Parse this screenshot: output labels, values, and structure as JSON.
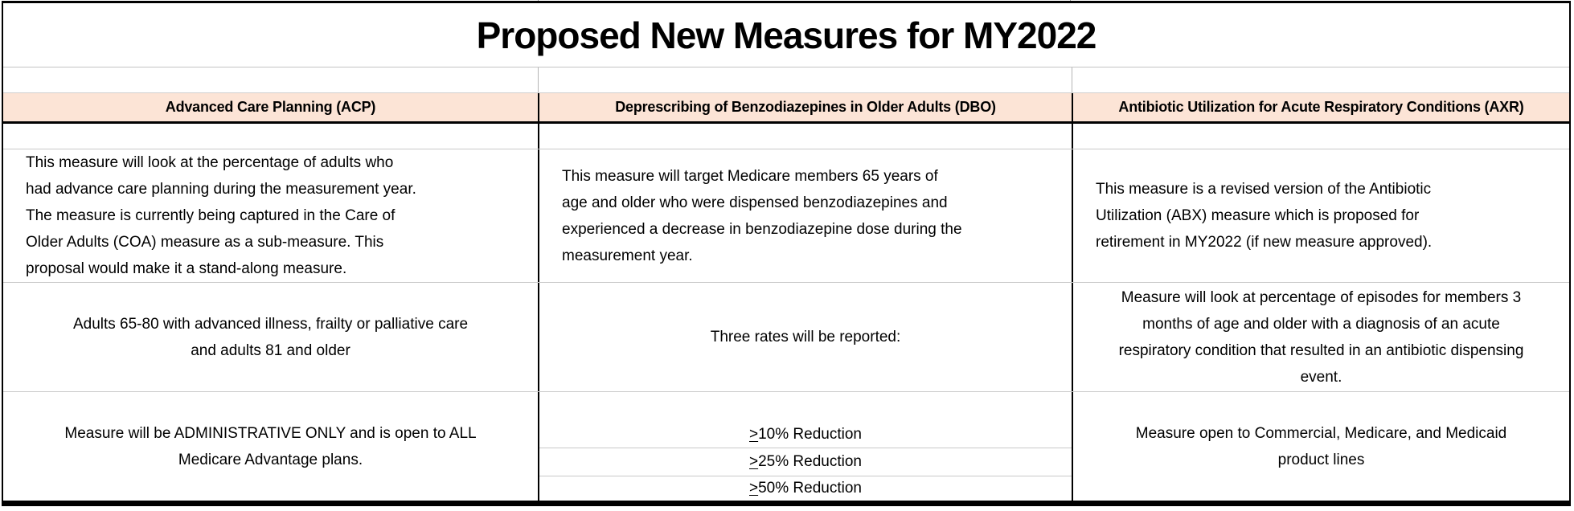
{
  "title": "Proposed New Measures for MY2022",
  "columns": [
    {
      "header": "Advanced Care Planning (ACP)",
      "description": "This measure will look at the percentage of adults who\nhad advance care planning during the measurement year.\nThe measure is currently being captured in the Care of\nOlder Adults (COA) measure as a sub-measure. This\nproposal would make it a stand-along measure.",
      "population": "Adults 65-80 with advanced illness, frailty or palliative care\nand adults 81 and older",
      "notes": "Measure will be ADMINISTRATIVE ONLY and is open to ALL\nMedicare Advantage plans."
    },
    {
      "header": "Deprescribing of Benzodiazepines in Older Adults (DBO)",
      "description": "This measure will target Medicare members 65 years of\nage and older who were dispensed benzodiazepines and\nexperienced a decrease in benzodiazepine dose during the\nmeasurement year.",
      "population": "Three rates will be reported:",
      "rates": [
        {
          "symbol": ">",
          "label": "10% Reduction"
        },
        {
          "symbol": ">",
          "label": "25% Reduction"
        },
        {
          "symbol": ">",
          "label": "50% Reduction"
        }
      ]
    },
    {
      "header": "Antibiotic Utilization for Acute Respiratory Conditions (AXR)",
      "description": "This measure is a revised version of the Antibiotic\nUtilization (ABX) measure which is proposed for\nretirement in MY2022 (if new measure approved).",
      "population": "Measure will look at percentage of episodes for members 3\nmonths of age and older with a diagnosis of an acute\nrespiratory condition that resulted in an antibiotic dispensing\nevent.",
      "notes": "Measure open to Commercial, Medicare, and Medicaid\nproduct lines"
    }
  ],
  "colors": {
    "header_bg": "#fce4d6",
    "grid_gray": "#c9c9c9",
    "border_black": "#000000",
    "text": "#000000",
    "background": "#ffffff"
  }
}
